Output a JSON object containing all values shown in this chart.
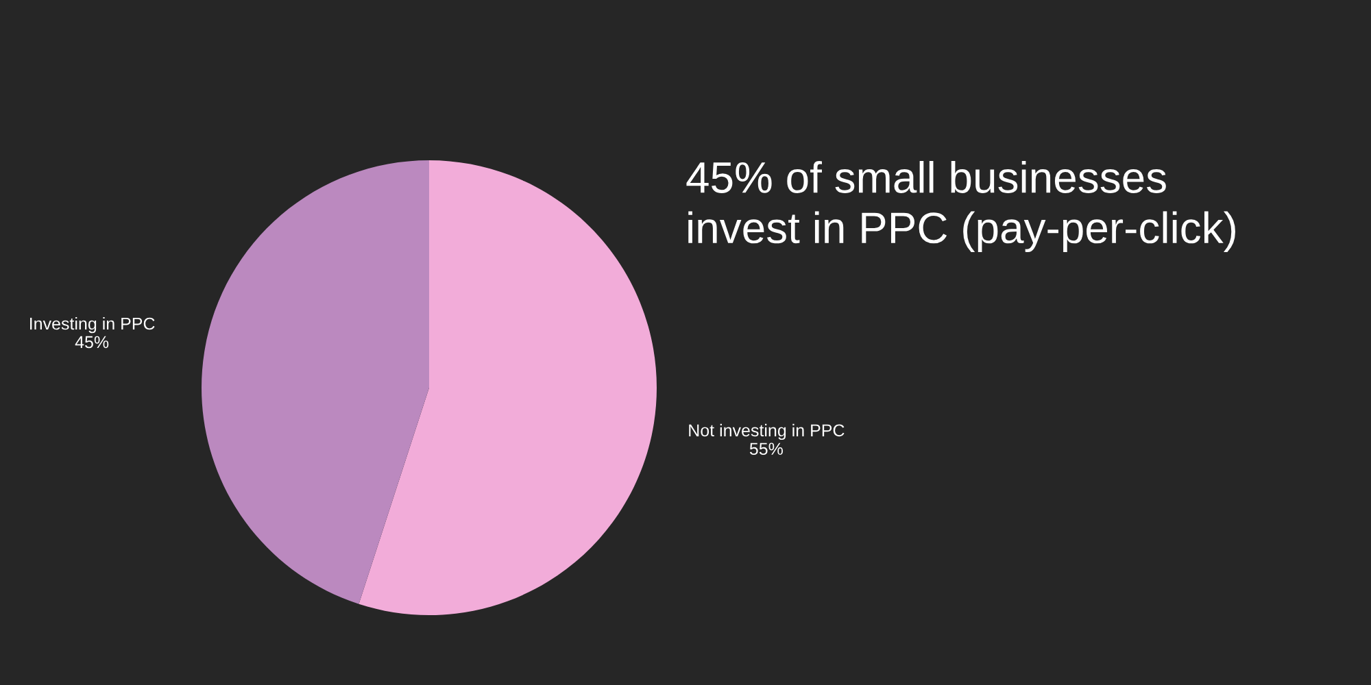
{
  "chart_data": {
    "type": "pie",
    "title": "45% of small businesses\ninvest in PPC (pay-per-click)",
    "categories": [
      "Not investing in PPC",
      "Investing in PPC"
    ],
    "values": [
      55,
      45
    ],
    "value_labels": [
      "55%",
      "45%"
    ],
    "colors": [
      "#f2acd9",
      "#bb89bf"
    ],
    "legend": false
  }
}
